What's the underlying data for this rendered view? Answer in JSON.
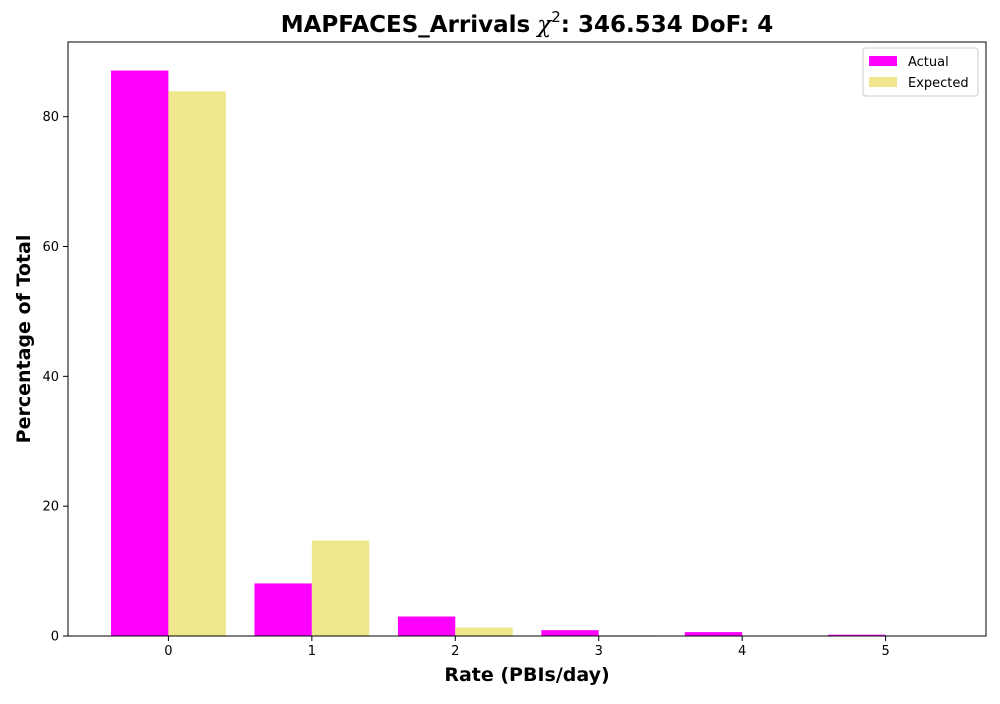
{
  "chart_data": {
    "type": "bar",
    "title_main": "MAPFACES_Arrivals",
    "title_chi": "χ",
    "title_sup": "2",
    "title_rest": ": 346.534 DoF: 4",
    "xlabel": "Rate (PBIs/day)",
    "ylabel": "Percentage of Total",
    "categories": [
      "0",
      "1",
      "2",
      "3",
      "4",
      "5"
    ],
    "xlim": [
      -0.7,
      5.7
    ],
    "ylim": [
      0,
      91.5
    ],
    "yticks": [
      0,
      20,
      40,
      60,
      80
    ],
    "grid": false,
    "legend_position": "top-right",
    "series": [
      {
        "name": "Actual",
        "color": "#ff00ff",
        "values": [
          87.1,
          8.1,
          3.0,
          0.9,
          0.6,
          0.2
        ]
      },
      {
        "name": "Expected",
        "color": "#f0e68c",
        "values": [
          83.9,
          14.7,
          1.3,
          0.1,
          0.0,
          0.0
        ]
      }
    ]
  }
}
